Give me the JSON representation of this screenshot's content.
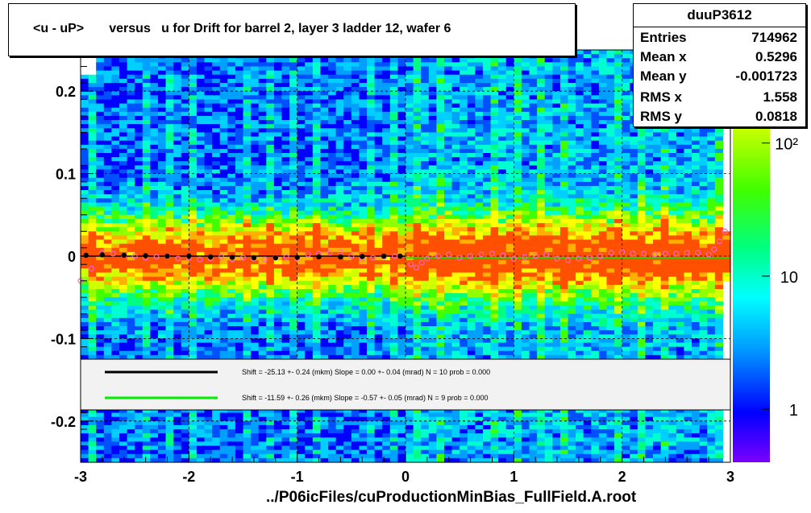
{
  "title": "<u - uP>       versus   u for Drift for barrel 2, layer 3 ladder 12, wafer 6",
  "stats": {
    "name": "duuP3612",
    "rows": [
      {
        "label": "Entries",
        "value": "714962"
      },
      {
        "label": "Mean x",
        "value": "0.5296"
      },
      {
        "label": "Mean y",
        "value": "-0.001723"
      },
      {
        "label": "RMS x",
        "value": "1.558"
      },
      {
        "label": "RMS y",
        "value": "0.0818"
      }
    ]
  },
  "footer": "../P06icFiles/cuProductionMinBias_FullField.A.root",
  "chart_data": {
    "type": "heatmap",
    "title": "<u - uP>       versus   u for Drift for barrel 2, layer 3 ladder 12, wafer 6",
    "xlim": [
      -3,
      3
    ],
    "ylim": [
      -0.25,
      0.25
    ],
    "x_ticks": [
      -3,
      -2,
      -1,
      0,
      1,
      2,
      3
    ],
    "y_ticks": [
      -0.2,
      -0.1,
      0,
      0.1,
      0.2
    ],
    "x_tick_labels": [
      "-3",
      "-2",
      "-1",
      "0",
      "1",
      "2",
      "3"
    ],
    "y_tick_labels": [
      "-0.2",
      "-0.1",
      "0",
      "0.1",
      "0.2"
    ],
    "grid": true,
    "colorbar": {
      "scale": "log",
      "labels": [
        "1",
        "10",
        "10²"
      ],
      "label_values": [
        1,
        10,
        100
      ],
      "range": [
        0.4,
        500
      ]
    },
    "profile_black": {
      "x": [
        -2.95,
        -2.8,
        -2.6,
        -2.4,
        -2.2,
        -2.0,
        -1.8,
        -1.6,
        -1.4,
        -1.2,
        -1.0,
        -0.8,
        -0.6,
        -0.4,
        -0.2,
        -0.05
      ],
      "y": [
        0.001,
        0.0015,
        0.001,
        0.0005,
        0.0,
        0.0,
        -0.001,
        -0.0015,
        -0.002,
        -0.002,
        -0.0015,
        -0.001,
        -0.001,
        -0.0005,
        0.0,
        0.0
      ]
    },
    "profile_pink": {
      "x": [
        -3.0,
        -2.9,
        -2.8,
        -2.7,
        -2.6,
        -2.5,
        -2.4,
        -2.3,
        -2.2,
        -2.1,
        -2.0,
        -1.9,
        -1.8,
        -1.7,
        -1.6,
        -1.5,
        -1.4,
        -1.3,
        -1.2,
        -1.1,
        -1.0,
        -0.9,
        -0.8,
        -0.7,
        -0.6,
        -0.5,
        -0.4,
        -0.3,
        -0.2,
        -0.1,
        0.05,
        0.1,
        0.15,
        0.2,
        0.3,
        0.4,
        0.5,
        0.6,
        0.7,
        0.8,
        0.9,
        1.0,
        1.1,
        1.2,
        1.3,
        1.4,
        1.5,
        1.6,
        1.7,
        1.8,
        1.9,
        2.0,
        2.1,
        2.2,
        2.3,
        2.4,
        2.5,
        2.6,
        2.7,
        2.8,
        2.85,
        2.9,
        2.95
      ],
      "y": [
        -0.03,
        -0.015,
        0.004,
        0.003,
        0.001,
        0.0,
        -0.002,
        -0.001,
        0.0,
        -0.003,
        -0.002,
        -0.004,
        -0.003,
        -0.001,
        -0.004,
        -0.002,
        -0.003,
        -0.004,
        -0.002,
        -0.001,
        -0.003,
        0.002,
        0.003,
        0.004,
        0.005,
        0.0,
        -0.003,
        -0.002,
        -0.001,
        0.0,
        -0.01,
        -0.014,
        -0.008,
        -0.003,
        0.0,
        0.002,
        -0.002,
        0.0,
        0.002,
        0.003,
        0.001,
        -0.003,
        -0.001,
        0.0,
        0.002,
        -0.003,
        -0.005,
        -0.003,
        -0.002,
        0.0,
        0.004,
        0.005,
        0.003,
        0.003,
        0.002,
        0.003,
        0.003,
        0.004,
        0.004,
        0.002,
        0.008,
        0.018,
        0.03
      ]
    },
    "legend": {
      "placement": "bottom",
      "entries": [
        {
          "color": "#000000",
          "text": "Shift =   -25.13 +- 0.24 (mkm) Slope =     0.00 +- 0.04 (mrad)  N = 10 prob = 0.000"
        },
        {
          "color": "#00ee00",
          "text": "Shift =   -11.59 +- 0.26 (mkm) Slope =    -0.57 +- 0.05 (mrad)  N = 9 prob = 0.000"
        }
      ]
    },
    "fit_lines": [
      {
        "color": "#000000",
        "x": [
          -3,
          0
        ],
        "y": [
          0.0,
          0.0
        ]
      },
      {
        "color": "#00ee00",
        "x": [
          0,
          3
        ],
        "y": [
          -0.002,
          -0.002
        ]
      }
    ]
  }
}
